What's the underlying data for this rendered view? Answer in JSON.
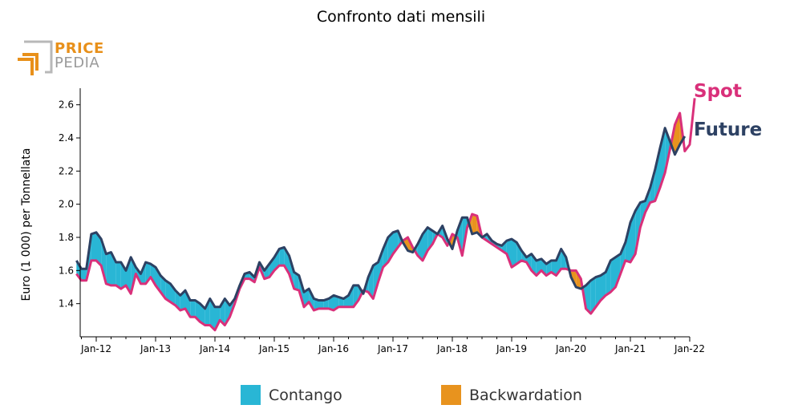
{
  "title": "Confronto dati mensili",
  "logo": {
    "line1": "PRICE",
    "line2": "PEDIA"
  },
  "colors": {
    "spot": "#d9307a",
    "future": "#2d4163",
    "contango": "#29b6d5",
    "backwardation": "#e8931e"
  },
  "legend": {
    "contango": "Contango",
    "backwardation": "Backwardation"
  },
  "chart_data": {
    "type": "line",
    "title": "Confronto dati mensili",
    "xlabel": "",
    "ylabel": "Euro (1 000) per Tonnellata",
    "ylim": [
      1.2,
      2.7
    ],
    "yticks": [
      1.4,
      1.6,
      1.8,
      2.0,
      2.2,
      2.4,
      2.6
    ],
    "ytick_labels": [
      "1.4",
      "1.6",
      "1.8",
      "2.0",
      "2.2",
      "2.4",
      "2.6"
    ],
    "xticks": [
      "Jan-12",
      "Jan-13",
      "Jan-14",
      "Jan-15",
      "Jan-16",
      "Jan-17",
      "Jan-18",
      "Jan-19",
      "Jan-20",
      "Jan-21",
      "Jan-22"
    ],
    "grid": false,
    "legend_position": "bottom",
    "x_start": "Sep-11",
    "x_step": "month",
    "series": [
      {
        "name": "Spot",
        "values": [
          1.58,
          1.54,
          1.54,
          1.66,
          1.66,
          1.63,
          1.52,
          1.51,
          1.51,
          1.49,
          1.51,
          1.46,
          1.58,
          1.52,
          1.52,
          1.56,
          1.51,
          1.47,
          1.43,
          1.41,
          1.39,
          1.36,
          1.37,
          1.32,
          1.32,
          1.29,
          1.27,
          1.27,
          1.24,
          1.3,
          1.27,
          1.32,
          1.4,
          1.49,
          1.55,
          1.55,
          1.53,
          1.62,
          1.55,
          1.56,
          1.6,
          1.63,
          1.63,
          1.58,
          1.49,
          1.48,
          1.38,
          1.41,
          1.36,
          1.37,
          1.37,
          1.37,
          1.36,
          1.38,
          1.38,
          1.38,
          1.38,
          1.42,
          1.48,
          1.47,
          1.43,
          1.53,
          1.62,
          1.65,
          1.7,
          1.74,
          1.78,
          1.8,
          1.74,
          1.69,
          1.66,
          1.72,
          1.76,
          1.82,
          1.8,
          1.75,
          1.82,
          1.8,
          1.69,
          1.86,
          1.94,
          1.93,
          1.8,
          1.78,
          1.76,
          1.74,
          1.72,
          1.7,
          1.62,
          1.64,
          1.66,
          1.65,
          1.6,
          1.57,
          1.6,
          1.57,
          1.59,
          1.57,
          1.61,
          1.61,
          1.6,
          1.6,
          1.55,
          1.37,
          1.34,
          1.38,
          1.42,
          1.45,
          1.47,
          1.5,
          1.58,
          1.66,
          1.65,
          1.7,
          1.86,
          1.95,
          2.01,
          2.02,
          2.1,
          2.19,
          2.33,
          2.48,
          2.55,
          2.32,
          2.36,
          2.64
        ]
      },
      {
        "name": "Future",
        "values": [
          1.66,
          1.61,
          1.61,
          1.82,
          1.83,
          1.79,
          1.7,
          1.71,
          1.65,
          1.65,
          1.6,
          1.68,
          1.62,
          1.58,
          1.65,
          1.64,
          1.62,
          1.57,
          1.54,
          1.52,
          1.48,
          1.45,
          1.48,
          1.42,
          1.42,
          1.4,
          1.37,
          1.43,
          1.38,
          1.38,
          1.43,
          1.39,
          1.43,
          1.51,
          1.58,
          1.59,
          1.56,
          1.65,
          1.6,
          1.64,
          1.68,
          1.73,
          1.74,
          1.69,
          1.59,
          1.57,
          1.47,
          1.49,
          1.43,
          1.42,
          1.42,
          1.43,
          1.45,
          1.44,
          1.43,
          1.45,
          1.51,
          1.51,
          1.46,
          1.56,
          1.63,
          1.65,
          1.73,
          1.8,
          1.83,
          1.84,
          1.77,
          1.72,
          1.71,
          1.76,
          1.82,
          1.86,
          1.84,
          1.82,
          1.87,
          1.79,
          1.73,
          1.84,
          1.92,
          1.92,
          1.82,
          1.83,
          1.8,
          1.82,
          1.78,
          1.76,
          1.75,
          1.78,
          1.79,
          1.77,
          1.72,
          1.68,
          1.7,
          1.66,
          1.67,
          1.64,
          1.66,
          1.66,
          1.73,
          1.68,
          1.56,
          1.5,
          1.49,
          1.51,
          1.54,
          1.56,
          1.57,
          1.59,
          1.66,
          1.68,
          1.7,
          1.77,
          1.89,
          1.96,
          2.01,
          2.02,
          2.1,
          2.21,
          2.34,
          2.46,
          2.38,
          2.3,
          2.36,
          2.41
        ]
      }
    ],
    "annotations": [
      "Spot",
      "Future"
    ]
  }
}
